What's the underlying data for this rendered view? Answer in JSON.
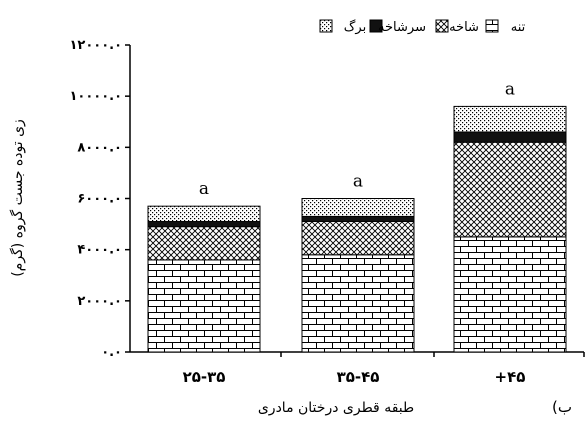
{
  "chart_data": {
    "type": "bar",
    "stacked": true,
    "categories": [
      "۲۵-۳۵",
      "۳۵-۴۵",
      "+۴۵"
    ],
    "series": [
      {
        "name": "تنه",
        "pattern": "brick",
        "values": [
          3600,
          3800,
          4500
        ]
      },
      {
        "name": "شاخه",
        "pattern": "crosshatch",
        "values": [
          1300,
          1300,
          3700
        ]
      },
      {
        "name": "سرشاخه",
        "pattern": "solid",
        "values": [
          200,
          200,
          400
        ]
      },
      {
        "name": "برگ",
        "pattern": "dots",
        "values": [
          600,
          700,
          1000
        ]
      }
    ],
    "significance_labels": [
      "a",
      "a",
      "a"
    ],
    "ylim": [
      0,
      12000
    ],
    "y_ticks": [
      {
        "value": 0,
        "label": "۰.۰"
      },
      {
        "value": 2000,
        "label": "۲۰۰۰.۰"
      },
      {
        "value": 4000,
        "label": "۴۰۰۰.۰"
      },
      {
        "value": 6000,
        "label": "۶۰۰۰.۰"
      },
      {
        "value": 8000,
        "label": "۸۰۰۰.۰"
      },
      {
        "value": 10000,
        "label": "۱۰۰۰۰.۰"
      },
      {
        "value": 12000,
        "label": "۱۲۰۰۰.۰"
      }
    ],
    "xlabel": "طبقه قطری درختان مادری",
    "ylabel": "زی توده جست گروه (گرم)",
    "panel_label": "(ب",
    "legend_position": "top",
    "grid": false
  }
}
